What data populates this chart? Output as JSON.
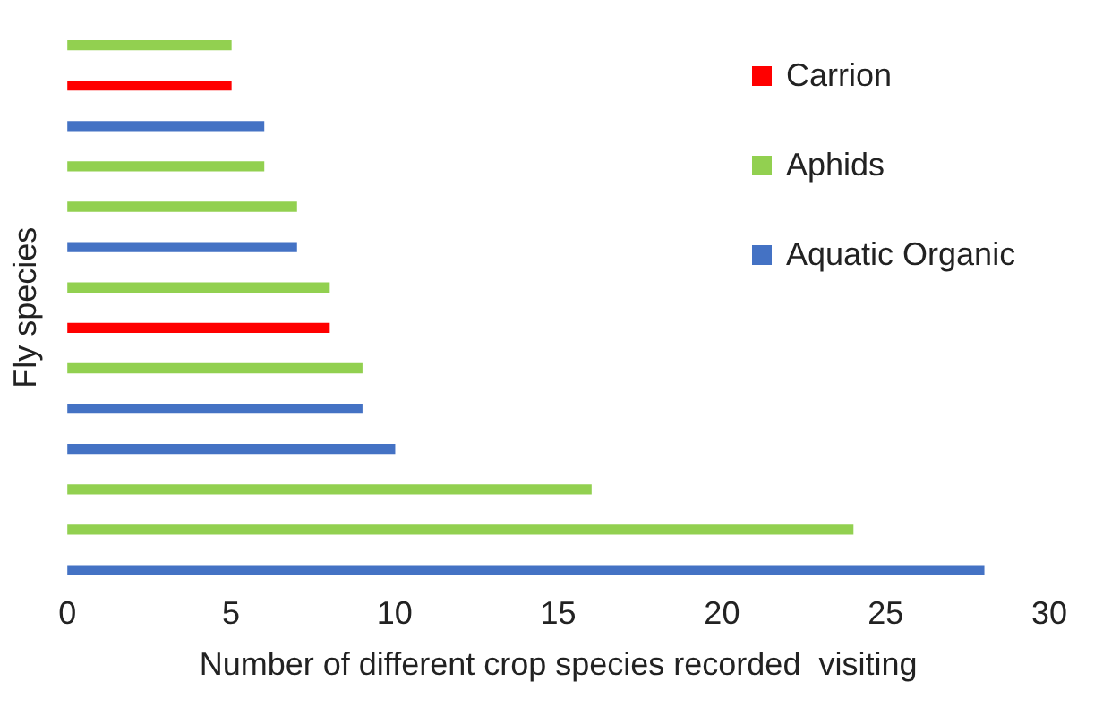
{
  "chart_data": {
    "type": "bar",
    "orientation": "horizontal",
    "stacked": true,
    "xlabel": "Number of different crop species recorded  visiting",
    "ylabel": "Fly species",
    "categories": [
      null,
      null,
      null,
      null,
      null,
      null,
      null,
      null,
      null,
      null,
      null,
      null,
      null,
      null
    ],
    "series": [
      {
        "name": "Carrion",
        "color": "#ff0000",
        "values": [
          null,
          5,
          null,
          null,
          null,
          null,
          null,
          8,
          null,
          null,
          null,
          null,
          null,
          null
        ]
      },
      {
        "name": "Aphids",
        "color": "#92d050",
        "values": [
          5,
          null,
          null,
          6,
          7,
          null,
          8,
          null,
          9,
          null,
          null,
          16,
          24,
          null
        ]
      },
      {
        "name": "Aquatic Organic",
        "color": "#4472c4",
        "values": [
          null,
          null,
          6,
          null,
          null,
          7,
          null,
          null,
          null,
          9,
          10,
          null,
          null,
          28
        ]
      }
    ],
    "xlim": [
      0,
      30
    ],
    "xticks": [
      0,
      5,
      10,
      15,
      20,
      25,
      30
    ],
    "grid": false,
    "legend": "top right"
  }
}
